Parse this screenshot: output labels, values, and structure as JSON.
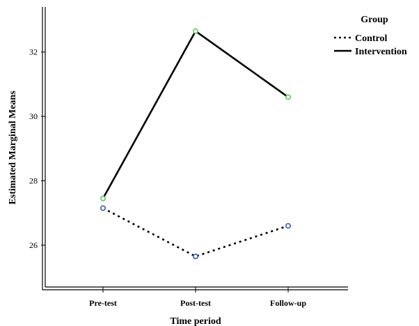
{
  "chart_data": {
    "type": "line",
    "xlabel": "Time period",
    "ylabel": "Estimated Marginal Means",
    "categories": [
      "Pre-test",
      "Post-test",
      "Follow-up"
    ],
    "y_ticks": [
      26,
      28,
      30,
      32
    ],
    "ylim": [
      24.7,
      33.4
    ],
    "grid": false,
    "legend": {
      "title": "Group",
      "placement": "top-right"
    },
    "series": [
      {
        "name": "Control",
        "values": [
          27.15,
          25.65,
          26.6
        ],
        "line_style": "dotted",
        "line_color": "#000000",
        "marker_color": "#3a5bb5"
      },
      {
        "name": "Intervention",
        "values": [
          27.45,
          32.65,
          30.6
        ],
        "line_style": "solid",
        "line_color": "#000000",
        "marker_color": "#5cc85c"
      }
    ]
  }
}
